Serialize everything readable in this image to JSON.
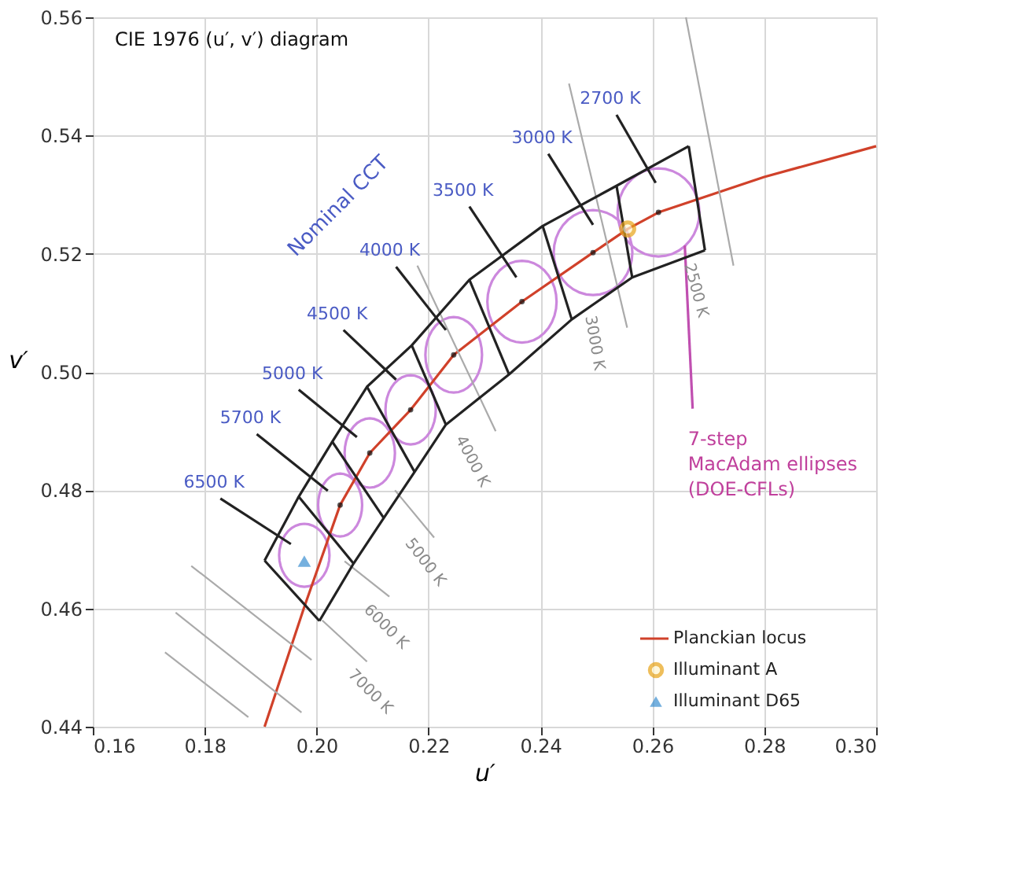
{
  "chart_data": {
    "type": "line",
    "xlabel": "u′",
    "ylabel": "v′",
    "xlim": [
      0.16,
      0.3
    ],
    "ylim": [
      0.44,
      0.56
    ],
    "xticks": [
      {
        "value": 0.16,
        "label": "0.16"
      },
      {
        "value": 0.18,
        "label": "0.18"
      },
      {
        "value": 0.2,
        "label": "0.20"
      },
      {
        "value": 0.22,
        "label": "0.22"
      },
      {
        "value": 0.24,
        "label": "0.24"
      },
      {
        "value": 0.26,
        "label": "0.26"
      },
      {
        "value": 0.28,
        "label": "0.28"
      },
      {
        "value": 0.3,
        "label": "0.30"
      }
    ],
    "yticks": [
      {
        "value": 0.44,
        "label": "0.44"
      },
      {
        "value": 0.46,
        "label": "0.46"
      },
      {
        "value": 0.48,
        "label": "0.48"
      },
      {
        "value": 0.5,
        "label": "0.50"
      },
      {
        "value": 0.52,
        "label": "0.52"
      },
      {
        "value": 0.54,
        "label": "0.54"
      },
      {
        "value": 0.56,
        "label": "0.56"
      }
    ],
    "grid": true,
    "legend": "bottom right",
    "series": [
      {
        "name": "Planckian locus",
        "color": "#d0412a",
        "x": [
          0.1907,
          0.1977,
          0.2042,
          0.2095,
          0.2168,
          0.2245,
          0.2367,
          0.2494,
          0.2556,
          0.2611,
          0.28,
          0.3
        ],
        "values": [
          0.44,
          0.46,
          0.4775,
          0.4863,
          0.4936,
          0.5029,
          0.5119,
          0.5202,
          0.5242,
          0.527,
          0.533,
          0.5382
        ]
      },
      {
        "color": "#aaaaaa",
        "x": [
          0.266,
          0.2745
        ],
        "values": [
          0.56,
          0.518
        ]
      },
      {
        "color": "#aaaaaa",
        "x": [
          0.2451,
          0.2555
        ],
        "values": [
          0.5488,
          0.5075
        ]
      },
      {
        "color": "#aaaaaa",
        "x": [
          0.218,
          0.232
        ],
        "values": [
          0.518,
          0.49
        ]
      },
      {
        "color": "#aaaaaa",
        "x": [
          0.214,
          0.221
        ],
        "values": [
          0.48,
          0.472
        ]
      },
      {
        "color": "#aaaaaa",
        "x": [
          0.205,
          0.213
        ],
        "values": [
          0.468,
          0.462
        ]
      },
      {
        "color": "#aaaaaa",
        "x": [
          0.201,
          0.209
        ],
        "values": [
          0.458,
          0.451
        ]
      },
      {
        "color": "#aaaaaa",
        "x": [
          0.1776,
          0.1991
        ],
        "values": [
          0.4672,
          0.4513
        ]
      },
      {
        "color": "#aaaaaa",
        "x": [
          0.1748,
          0.1973
        ],
        "values": [
          0.4593,
          0.4424
        ]
      },
      {
        "color": "#aaaaaa",
        "x": [
          0.1729,
          0.1878
        ],
        "values": [
          0.4526,
          0.4416
        ]
      },
      {
        "color": "#c04fb0",
        "x": [
          0.2658,
          0.2672
        ],
        "values": [
          0.5214,
          0.4938
        ]
      },
      {
        "color": "#222222",
        "x": [
          0.1907,
          0.1968,
          0.2028,
          0.209,
          0.217,
          0.2273,
          0.2404,
          0.2536,
          0.2665
        ],
        "values": [
          0.4681,
          0.4789,
          0.4882,
          0.4975,
          0.5045,
          0.5156,
          0.5247,
          0.5315,
          0.5382
        ]
      },
      {
        "color": "#222222",
        "x": [
          0.2005,
          0.2066,
          0.212,
          0.2175,
          0.2231,
          0.2344,
          0.2456,
          0.2564,
          0.2694
        ],
        "values": [
          0.4579,
          0.4676,
          0.4753,
          0.4831,
          0.4911,
          0.4996,
          0.5089,
          0.516,
          0.5206
        ]
      },
      {
        "color": "#222222",
        "x": [
          0.1907,
          0.2005
        ],
        "values": [
          0.4681,
          0.4579
        ]
      },
      {
        "color": "#222222",
        "x": [
          0.1968,
          0.2066
        ],
        "values": [
          0.4789,
          0.4676
        ]
      },
      {
        "color": "#222222",
        "x": [
          0.2028,
          0.212
        ],
        "values": [
          0.4882,
          0.4753
        ]
      },
      {
        "color": "#222222",
        "x": [
          0.209,
          0.2175
        ],
        "values": [
          0.4975,
          0.4831
        ]
      },
      {
        "color": "#222222",
        "x": [
          0.217,
          0.2231
        ],
        "values": [
          0.5045,
          0.4911
        ]
      },
      {
        "color": "#222222",
        "x": [
          0.2273,
          0.2344
        ],
        "values": [
          0.5156,
          0.4996
        ]
      },
      {
        "color": "#222222",
        "x": [
          0.2404,
          0.2456
        ],
        "values": [
          0.5247,
          0.5089
        ]
      },
      {
        "color": "#222222",
        "x": [
          0.2536,
          0.2564
        ],
        "values": [
          0.5315,
          0.516
        ]
      },
      {
        "color": "#222222",
        "x": [
          0.2665,
          0.2694
        ],
        "values": [
          0.5382,
          0.5206
        ]
      },
      {
        "color": "#222222",
        "x": [
          0.1828,
          0.1954
        ],
        "values": [
          0.4786,
          0.4709
        ]
      },
      {
        "color": "#222222",
        "x": [
          0.1893,
          0.202
        ],
        "values": [
          0.4895,
          0.4799
        ]
      },
      {
        "color": "#222222",
        "x": [
          0.1968,
          0.2072
        ],
        "values": [
          0.497,
          0.489
        ]
      },
      {
        "color": "#222222",
        "x": [
          0.2048,
          0.2142
        ],
        "values": [
          0.5071,
          0.4987
        ]
      },
      {
        "color": "#222222",
        "x": [
          0.2142,
          0.2231
        ],
        "values": [
          0.5178,
          0.5071
        ]
      },
      {
        "color": "#222222",
        "x": [
          0.2273,
          0.2357
        ],
        "values": [
          0.528,
          0.516
        ]
      },
      {
        "color": "#222222",
        "x": [
          0.2414,
          0.2494
        ],
        "values": [
          0.5369,
          0.5249
        ]
      },
      {
        "color": "#222222",
        "x": [
          0.2536,
          0.2606
        ],
        "values": [
          0.5435,
          0.532
        ]
      },
      {
        "type": "scatter",
        "marker": "circle",
        "color": "#111111",
        "x": [
          0.2042,
          0.2095,
          0.2168,
          0.2245,
          0.2367,
          0.2494,
          0.2611
        ],
        "values": [
          0.4775,
          0.4863,
          0.4936,
          0.5029,
          0.5119,
          0.5202,
          0.527
        ]
      },
      {
        "name": "Illuminant A",
        "type": "scatter",
        "marker": "circle",
        "color": "#e8a317",
        "x": [
          0.2556
        ],
        "values": [
          0.5242
        ]
      },
      {
        "name": "Illuminant D65",
        "type": "scatter",
        "marker": "triangle",
        "color": "#3a8fd0",
        "x": [
          0.1978
        ],
        "values": [
          0.468
        ]
      }
    ],
    "annotations": [
      "CIE 1976 (u′, v′) diagram",
      "Nominal CCT",
      {
        "text": "6500 K",
        "x": 0.1828,
        "y": 0.4786
      },
      {
        "text": "5700 K",
        "x": 0.1893,
        "y": 0.4895
      },
      {
        "text": "5000 K",
        "x": 0.1968,
        "y": 0.497
      },
      {
        "text": "4500 K",
        "x": 0.2048,
        "y": 0.5071
      },
      {
        "text": "4000 K",
        "x": 0.2142,
        "y": 0.5178
      },
      {
        "text": "3500 K",
        "x": 0.2273,
        "y": 0.528
      },
      {
        "text": "3000 K",
        "x": 0.2414,
        "y": 0.5369
      },
      {
        "text": "2700 K",
        "x": 0.2536,
        "y": 0.5435
      },
      {
        "text": "2500 K",
        "x": 0.2745,
        "y": 0.518
      },
      {
        "text": "3000 K",
        "x": 0.2555,
        "y": 0.5075
      },
      {
        "text": "4000 K",
        "x": 0.232,
        "y": 0.49
      },
      {
        "text": "5000 K",
        "x": 0.221,
        "y": 0.472
      },
      {
        "text": "6000 K",
        "x": 0.213,
        "y": 0.462
      },
      {
        "text": "7000 K",
        "x": 0.209,
        "y": 0.451
      },
      {
        "text": "7-step\nMacAdam ellipses\n(DOE-CFLs)",
        "x": 0.2672,
        "y": 0.4938
      }
    ]
  }
}
